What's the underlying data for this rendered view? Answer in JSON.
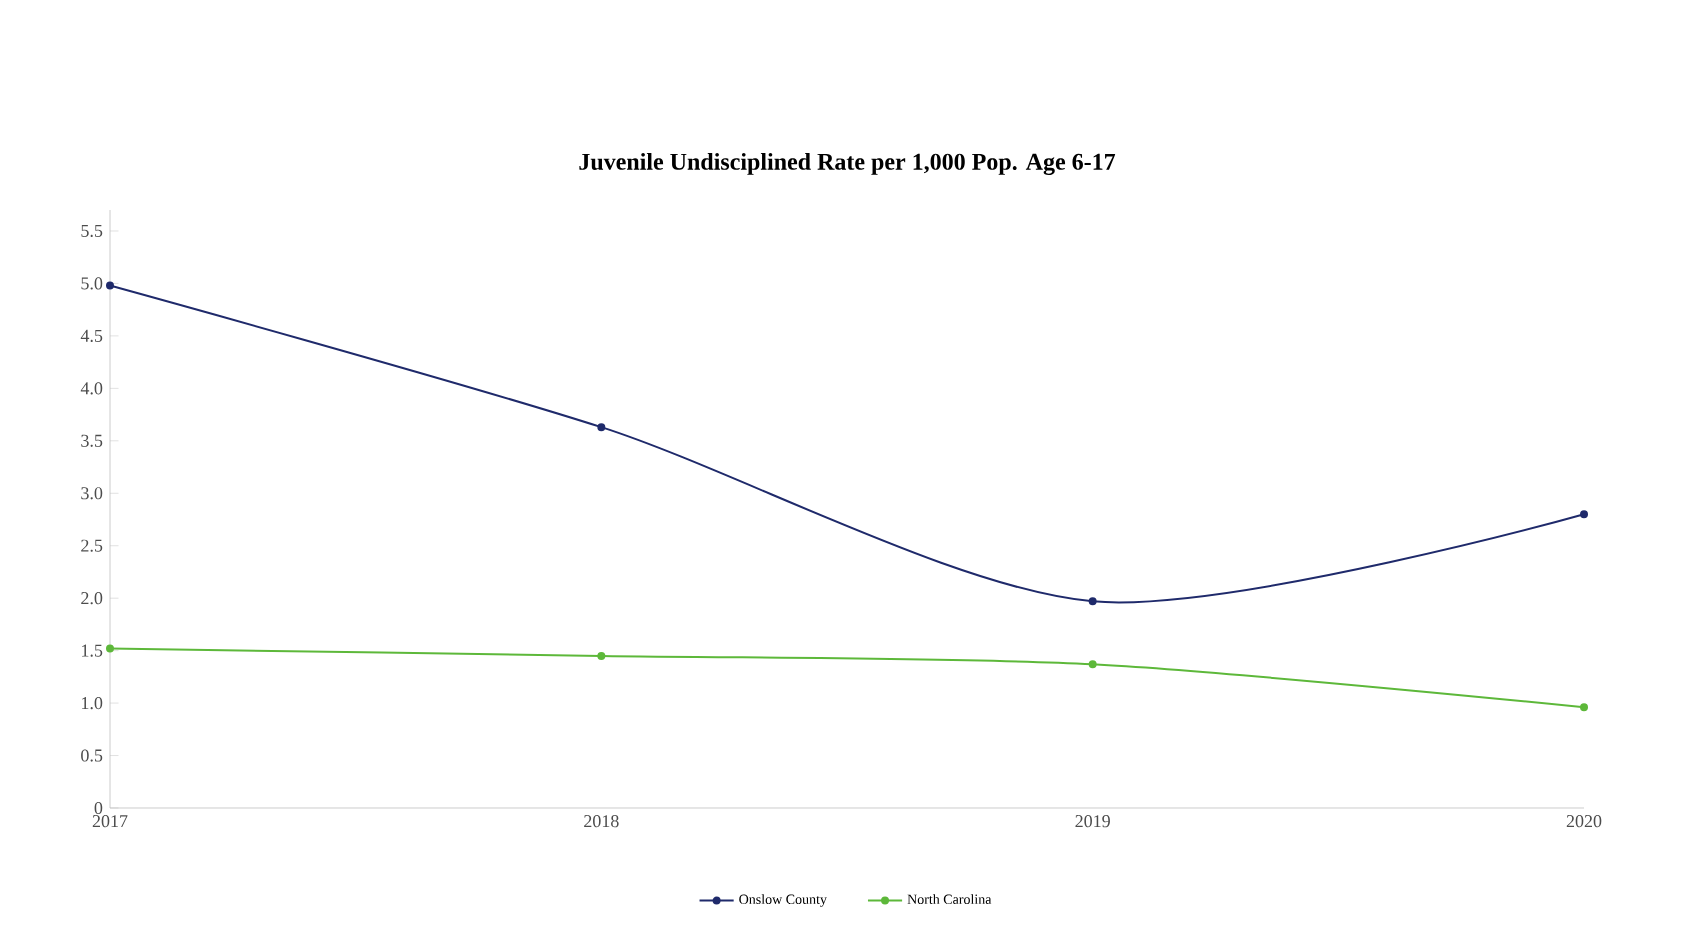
{
  "chart_data": {
    "type": "line",
    "title": "Juvenile Undisciplined Rate per 1,000 Pop. Age 6-17",
    "x": [
      2017,
      2018,
      2019,
      2020
    ],
    "xlim": [
      2017,
      2020
    ],
    "xticks": [
      2017,
      2018,
      2019,
      2020
    ],
    "ylim": [
      0,
      5.7
    ],
    "yticks": [
      {
        "value": 0,
        "label": "0"
      },
      0.5,
      {
        "value": 1,
        "label": "1.0"
      },
      1.5,
      {
        "value": 2,
        "label": "2.0"
      },
      2.5,
      {
        "value": 3,
        "label": "3.0"
      },
      3.5,
      {
        "value": 4,
        "label": "4.0"
      },
      4.5,
      {
        "value": 5,
        "label": "5.0"
      },
      5.5
    ],
    "marker": "circle",
    "legend": "bottom",
    "grid": false,
    "series": [
      {
        "name": "Onslow County",
        "color": "#1f2a6b",
        "values": [
          4.98,
          3.63,
          1.97,
          2.8
        ]
      },
      {
        "name": "North Carolina",
        "color": "#5db83a",
        "values": [
          1.52,
          1.45,
          1.37,
          0.96
        ]
      }
    ]
  }
}
